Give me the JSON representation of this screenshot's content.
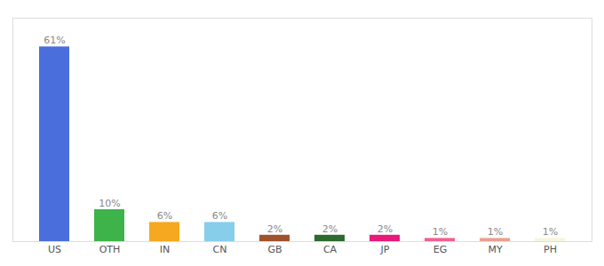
{
  "chart_data": {
    "type": "bar",
    "categories": [
      "US",
      "OTH",
      "IN",
      "CN",
      "GB",
      "CA",
      "JP",
      "EG",
      "MY",
      "PH"
    ],
    "values": [
      61,
      10,
      6,
      6,
      2,
      2,
      2,
      1,
      1,
      1
    ],
    "value_labels": [
      "61%",
      "10%",
      "6%",
      "6%",
      "2%",
      "2%",
      "2%",
      "1%",
      "1%",
      "1%"
    ],
    "colors": [
      "#4a6fdc",
      "#3db34a",
      "#f5a820",
      "#87ceeb",
      "#a0522d",
      "#2d6a2d",
      "#e8197a",
      "#f06090",
      "#e8a090",
      "#f5f5dc"
    ],
    "ylim": [
      0,
      70
    ],
    "data_labels": true,
    "tick_labels": "x",
    "grid": false
  }
}
